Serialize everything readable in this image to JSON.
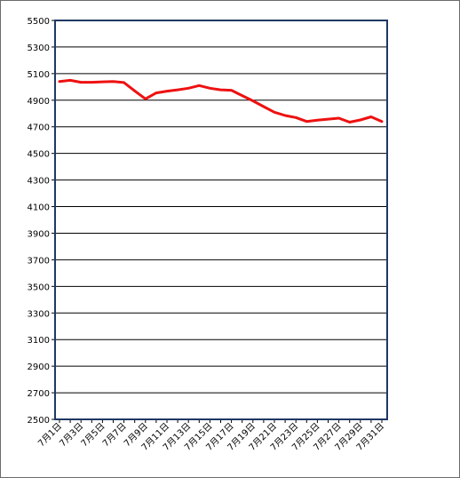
{
  "chart_data": {
    "type": "line",
    "title": "",
    "xlabel": "",
    "ylabel": "",
    "ylim": [
      2500,
      5500
    ],
    "y_ticks": [
      2500,
      2700,
      2900,
      3100,
      3300,
      3500,
      3700,
      3900,
      4100,
      4300,
      4500,
      4700,
      4900,
      5100,
      5300,
      5500
    ],
    "x": [
      "7月1日",
      "7月2日",
      "7月3日",
      "7月4日",
      "7月5日",
      "7月6日",
      "7月7日",
      "7月8日",
      "7月9日",
      "7月10日",
      "7月11日",
      "7月12日",
      "7月13日",
      "7月14日",
      "7月15日",
      "7月16日",
      "7月17日",
      "7月18日",
      "7月19日",
      "7月20日",
      "7月21日",
      "7月22日",
      "7月23日",
      "7月24日",
      "7月25日",
      "7月26日",
      "7月27日",
      "7月28日",
      "7月29日",
      "7月30日",
      "7月31日"
    ],
    "x_tick_labels": [
      "7月1日",
      "7月3日",
      "7月5日",
      "7月7日",
      "7月9日",
      "7月11日",
      "7月13日",
      "7月15日",
      "7月17日",
      "7月19日",
      "7月21日",
      "7月23日",
      "7月25日",
      "7月27日",
      "7月29日",
      "7月31日"
    ],
    "series": [
      {
        "color": "#ee1111",
        "values": [
          5040,
          5050,
          5035,
          5035,
          5038,
          5040,
          5033,
          4970,
          4910,
          4955,
          4968,
          4978,
          4990,
          5010,
          4990,
          4978,
          4975,
          4935,
          4895,
          4852,
          4810,
          4785,
          4770,
          4740,
          4750,
          4758,
          4765,
          4735,
          4752,
          4775,
          4740
        ]
      }
    ],
    "grid": true,
    "legend": "none",
    "colors": {
      "frame": "#1f3864",
      "grid": "#000000",
      "line": "#ee1111"
    }
  }
}
